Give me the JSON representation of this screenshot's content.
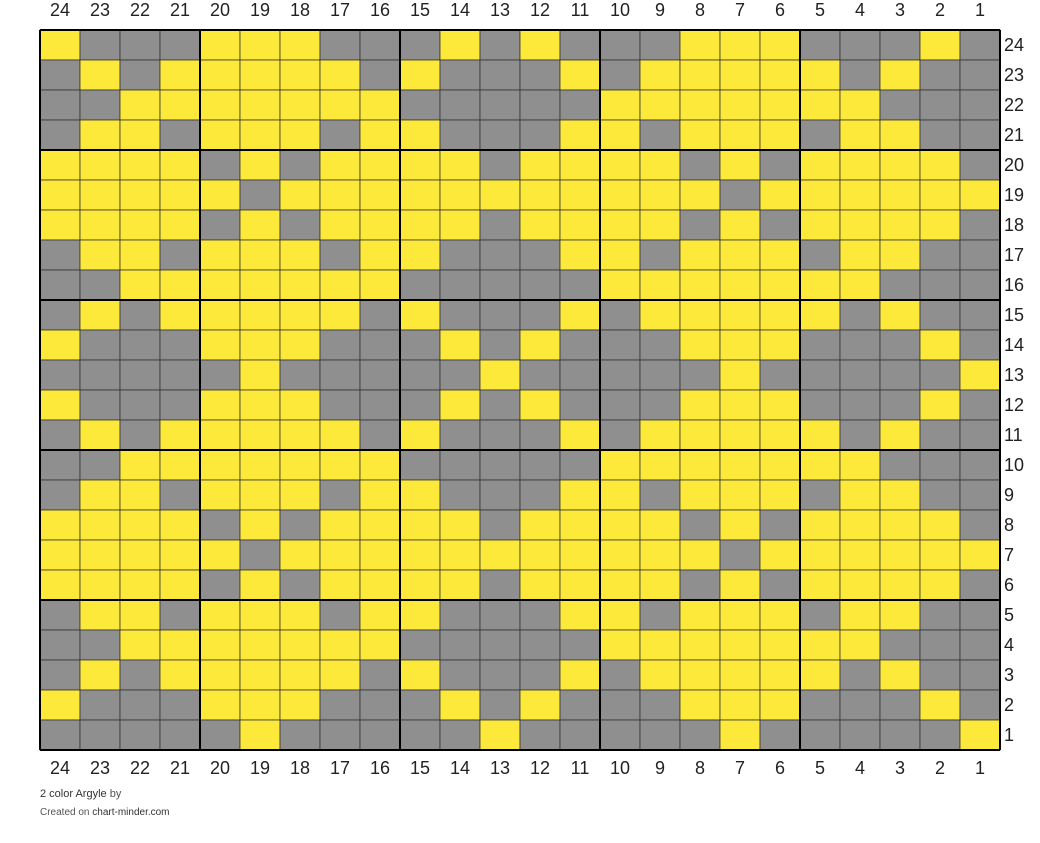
{
  "chart_data": {
    "type": "grid",
    "column_labels": [
      24,
      23,
      22,
      21,
      20,
      19,
      18,
      17,
      16,
      15,
      14,
      13,
      12,
      11,
      10,
      9,
      8,
      7,
      6,
      5,
      4,
      3,
      2,
      1
    ],
    "row_labels": [
      24,
      23,
      22,
      21,
      20,
      19,
      18,
      17,
      16,
      15,
      14,
      13,
      12,
      11,
      10,
      9,
      8,
      7,
      6,
      5,
      4,
      3,
      2,
      1
    ],
    "colors": {
      "Y": "#fde93a",
      "G": "#8f8f8f"
    },
    "cells": [
      "YGGGYYYGGGYGYGGGYYYGGGYG",
      "GYGYYYYYGYGGGYGYYYYYGYGG",
      "GGYYYYYYYGGGGGYYYYYYYGGG",
      "GYYGYYYGYYGGGYYGYYYGYYGG",
      "YYYYGYGYYYYGYYYYGYGYYYYG",
      "YYYYYGYYYYYYYYYYYGYYYYYY",
      "YYYYGYGYYYYGYYYYGYGYYYYG",
      "GYYGYYYGYYGGGYYGYYYGYYGG",
      "GGYYYYYYYGGGGGYYYYYYYGGG",
      "GYGYYYYYGYGGGYGYYYYYGYGG",
      "YGGGYYYGGGYGYGGGYYYGGGYG",
      "GGGGGYGGGGGYGGGGGYGGGGGY",
      "YGGGYYYGGGYGYGGGYYYGGGYG",
      "GYGYYYYYGYGGGYGYYYYYGYGG",
      "GGYYYYYYYGGGGGYYYYYYYGGG",
      "GYYGYYYGYYGGGYYGYYYGYYGG",
      "YYYYGYGYYYYGYYYYGYGYYYYG",
      "YYYYYGYYYYYYYYYYYGYYYYYY",
      "YYYYGYGYYYYGYYYYGYGYYYYG",
      "GYYGYYYGYYGGGYYGYYYGYYGG",
      "GGYYYYYYYGGGGGYYYYYYYGGG",
      "GYGYYYYYGYGGGYGYYYYYGYGG",
      "YGGGYYYGGGYGYGGGYYYGGGYG",
      "GGGGGYGGGGGYGGGGGYGGGGGY"
    ],
    "footer": {
      "title": "2 color Argyle",
      "by": "by",
      "created": "Created on",
      "site": "chart-minder.com"
    }
  }
}
